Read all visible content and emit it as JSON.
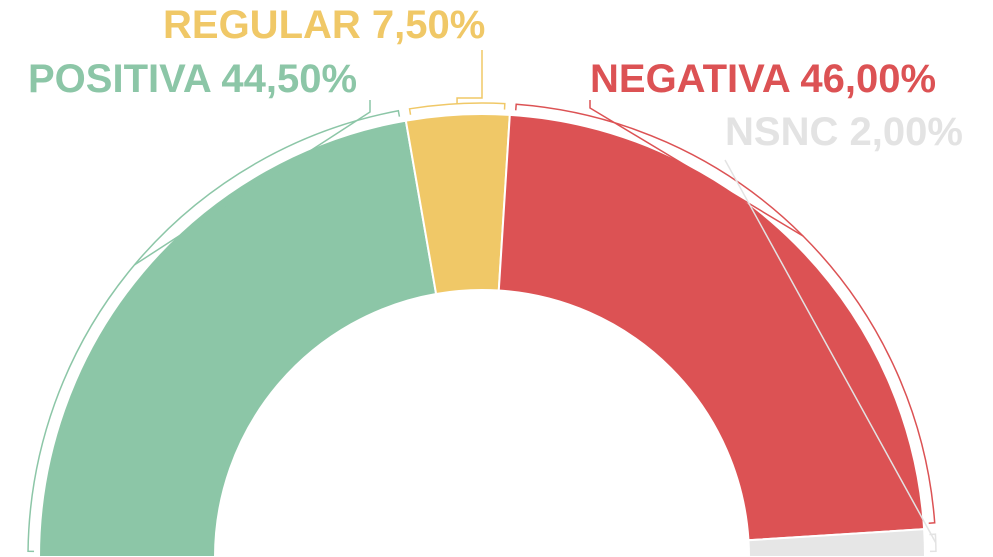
{
  "chart_data": {
    "type": "half-donut",
    "categories": [
      "POSITIVA",
      "REGULAR",
      "NEGATIVA",
      "NSNC"
    ],
    "values": [
      44.5,
      7.5,
      46.0,
      2.0
    ],
    "value_labels": [
      "44,50%",
      "7,50%",
      "46,00%",
      "2,00%"
    ],
    "colors": [
      "#8cc6a7",
      "#f0c867",
      "#dc5254",
      "#e6e6e6"
    ],
    "label_colors": [
      "#8cc6a7",
      "#f0c867",
      "#dc5254",
      "#e3e3e3"
    ]
  }
}
